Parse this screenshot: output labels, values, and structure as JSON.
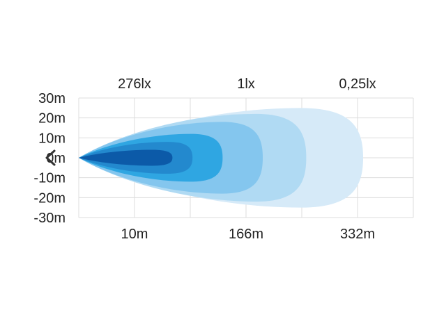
{
  "chart_data": {
    "type": "area",
    "title": "",
    "xlabel": "",
    "ylabel": "",
    "ylim": [
      -30,
      30
    ],
    "y_ticks": [
      "30m",
      "20m",
      "10m",
      "0m",
      "-10m",
      "-20m",
      "-30m"
    ],
    "y_tick_values": [
      30,
      20,
      10,
      0,
      -10,
      -20,
      -30
    ],
    "x_ticks": [
      "10m",
      "166m",
      "332m"
    ],
    "lux_labels": [
      "276lx",
      "1lx",
      "0,25lx"
    ],
    "grid": true,
    "series": [
      {
        "reach_fraction": 0.85,
        "half_width": 25,
        "color": "#d6eaf8"
      },
      {
        "reach_fraction": 0.68,
        "half_width": 22,
        "color": "#b0daf3"
      },
      {
        "reach_fraction": 0.55,
        "half_width": 18,
        "color": "#84c6ee"
      },
      {
        "reach_fraction": 0.43,
        "half_width": 12,
        "color": "#2fa6e2"
      },
      {
        "reach_fraction": 0.34,
        "half_width": 8,
        "color": "#2389ce"
      },
      {
        "reach_fraction": 0.28,
        "half_width": 4,
        "color": "#0c5aa8"
      }
    ]
  },
  "colors": {
    "grid": "#dcdcdc",
    "text": "#222222",
    "nav_arrow": "#333333"
  },
  "nav": {
    "icon": "chevron-left-icon"
  }
}
